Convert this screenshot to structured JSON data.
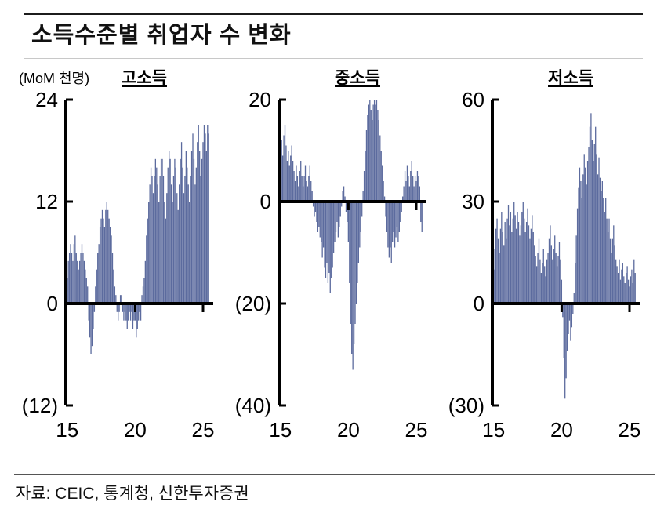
{
  "page": {
    "title": "소득수준별 취업자 수 변화",
    "unit_label": "(MoM 천명)",
    "source": "자료: CEIC, 통계청, 신한투자증권"
  },
  "chart_data": [
    {
      "type": "bar",
      "title": "고소득",
      "ylabel": "MoM 천명",
      "bar_color": "#5c6b9e",
      "ylim": [
        -12,
        24
      ],
      "xlim": [
        2014.9,
        2025.75
      ],
      "x_start": 2015.0,
      "x_step_months": 1,
      "grid": false,
      "yticks": [
        {
          "v": 24,
          "label": "24"
        },
        {
          "v": 12,
          "label": "12"
        },
        {
          "v": 0,
          "label": "0"
        },
        {
          "v": -12,
          "label": "(12)"
        }
      ],
      "xticks": [
        {
          "v": 2015,
          "label": "15"
        },
        {
          "v": 2020,
          "label": "20"
        },
        {
          "v": 2025,
          "label": "25"
        }
      ],
      "values": [
        3,
        5,
        6,
        7,
        6,
        5,
        7,
        8,
        6,
        5,
        4,
        5,
        6,
        7,
        6,
        5,
        4,
        3,
        2,
        -2,
        -4,
        -6,
        -5,
        -3,
        -1,
        2,
        4,
        6,
        7,
        9,
        10,
        11,
        10,
        9,
        11,
        12,
        11,
        10,
        9,
        8,
        6,
        4,
        2,
        1,
        -1,
        -2,
        -1,
        1,
        1,
        -1,
        -2,
        -1,
        -2,
        -3,
        -2,
        -1,
        -2,
        -1,
        -3,
        -2,
        -2,
        -4,
        -3,
        -2,
        -1,
        -2,
        1,
        2,
        3,
        5,
        8,
        10,
        12,
        14,
        16,
        15,
        13,
        15,
        17,
        16,
        14,
        12,
        15,
        17,
        17,
        15,
        12,
        10,
        13,
        16,
        18,
        17,
        14,
        12,
        15,
        17,
        16,
        13,
        11,
        14,
        17,
        19,
        16,
        13,
        15,
        18,
        16,
        14,
        12,
        15,
        18,
        20,
        17,
        14,
        16,
        19,
        21,
        18,
        15,
        17,
        19,
        21,
        20,
        18,
        21,
        20
      ]
    },
    {
      "type": "bar",
      "title": "중소득",
      "ylabel": "MoM 천명",
      "bar_color": "#5c6b9e",
      "ylim": [
        -40,
        20
      ],
      "xlim": [
        2014.9,
        2025.75
      ],
      "x_start": 2015.0,
      "x_step_months": 1,
      "grid": false,
      "yticks": [
        {
          "v": 20,
          "label": "20"
        },
        {
          "v": 0,
          "label": "0"
        },
        {
          "v": -20,
          "label": "(20)"
        },
        {
          "v": -40,
          "label": "(40)"
        }
      ],
      "xticks": [
        {
          "v": 2015,
          "label": "15"
        },
        {
          "v": 2020,
          "label": "20"
        },
        {
          "v": 2025,
          "label": "25"
        }
      ],
      "values": [
        16,
        12,
        9,
        13,
        15,
        11,
        8,
        10,
        7,
        9,
        11,
        8,
        6,
        4,
        7,
        5,
        3,
        6,
        8,
        5,
        3,
        5,
        7,
        4,
        3,
        5,
        7,
        4,
        2,
        -1,
        -3,
        -2,
        -4,
        -6,
        -5,
        -7,
        -8,
        -11,
        -9,
        -13,
        -15,
        -12,
        -16,
        -14,
        -18,
        -15,
        -13,
        -10,
        -8,
        -6,
        -4,
        -7,
        -5,
        -3,
        -1,
        2,
        3,
        1,
        -2,
        -4,
        -8,
        -16,
        -24,
        -30,
        -33,
        -28,
        -24,
        -20,
        -16,
        -12,
        -9,
        -6,
        -3,
        2,
        6,
        10,
        14,
        17,
        19,
        20,
        18,
        16,
        19,
        20,
        19,
        20,
        18,
        16,
        13,
        10,
        7,
        4,
        1,
        -3,
        -6,
        -9,
        -11,
        -9,
        -12,
        -8,
        -6,
        -9,
        -7,
        -5,
        -8,
        -6,
        -4,
        -2,
        1,
        3,
        6,
        4,
        7,
        5,
        3,
        6,
        8,
        5,
        3,
        5,
        4,
        6,
        5,
        3,
        -4,
        -6
      ]
    },
    {
      "type": "bar",
      "title": "저소득",
      "ylabel": "MoM 천명",
      "bar_color": "#5c6b9e",
      "ylim": [
        -30,
        60
      ],
      "xlim": [
        2014.9,
        2025.75
      ],
      "x_start": 2015.0,
      "x_step_months": 1,
      "grid": false,
      "yticks": [
        {
          "v": 60,
          "label": "60"
        },
        {
          "v": 30,
          "label": "30"
        },
        {
          "v": 0,
          "label": "0"
        },
        {
          "v": -30,
          "label": "(30)"
        }
      ],
      "xticks": [
        {
          "v": 2015,
          "label": "15"
        },
        {
          "v": 2020,
          "label": "20"
        },
        {
          "v": 2025,
          "label": "25"
        }
      ],
      "values": [
        10,
        16,
        22,
        25,
        19,
        15,
        22,
        27,
        21,
        17,
        24,
        19,
        25,
        29,
        23,
        27,
        21,
        25,
        30,
        26,
        22,
        27,
        24,
        20,
        23,
        27,
        30,
        25,
        21,
        24,
        28,
        23,
        19,
        22,
        26,
        21,
        17,
        14,
        11,
        15,
        19,
        13,
        9,
        12,
        16,
        11,
        8,
        13,
        15,
        19,
        23,
        17,
        13,
        16,
        20,
        15,
        11,
        14,
        18,
        13,
        7,
        -4,
        -16,
        -28,
        -22,
        -14,
        -9,
        -5,
        -11,
        -7,
        -3,
        3,
        12,
        20,
        28,
        34,
        40,
        36,
        31,
        38,
        44,
        40,
        35,
        42,
        46,
        52,
        56,
        48,
        42,
        47,
        52,
        44,
        38,
        43,
        37,
        33,
        36,
        31,
        27,
        31,
        25,
        21,
        25,
        19,
        15,
        19,
        23,
        17,
        13,
        11,
        9,
        13,
        7,
        10,
        12,
        8,
        6,
        9,
        11,
        7,
        5,
        8,
        10,
        6,
        13,
        9
      ]
    }
  ]
}
